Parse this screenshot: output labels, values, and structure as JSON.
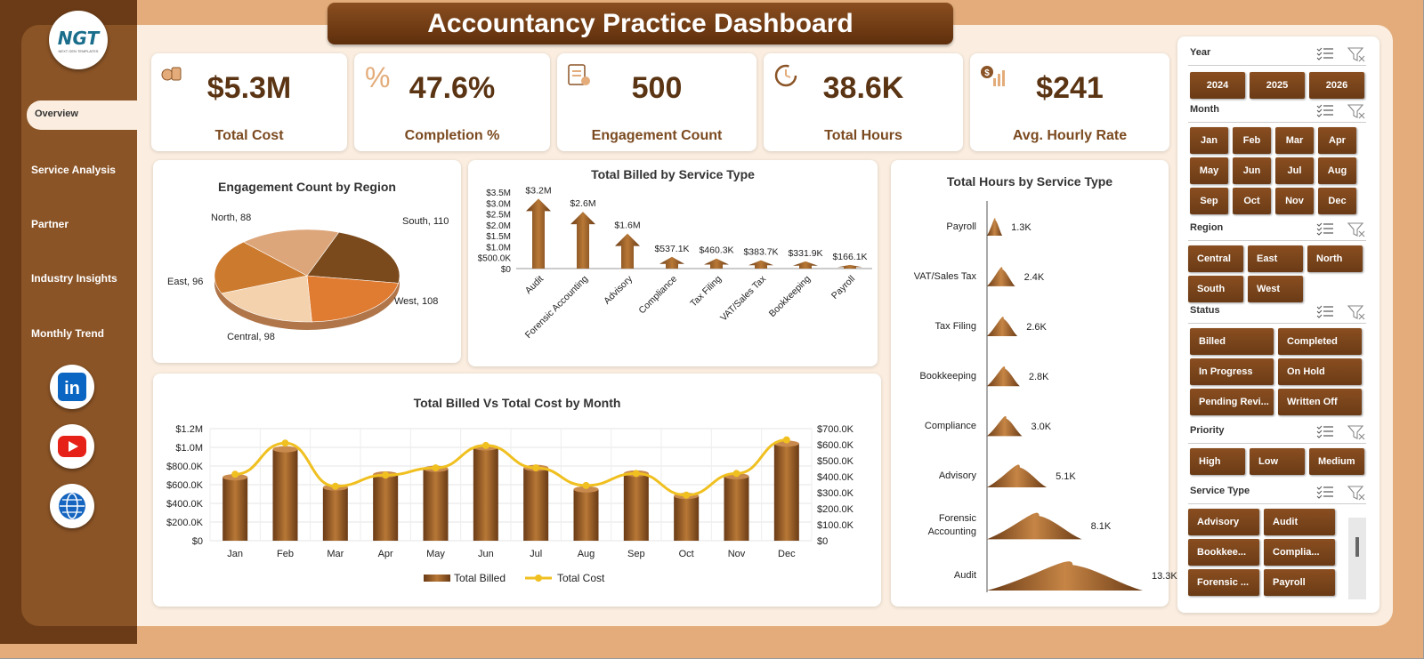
{
  "app_title": "Accountancy Practice Dashboard",
  "logo_text": "NGT",
  "logo_sub": "NEXT GEN TEMPLATES",
  "nav": [
    {
      "label": "Overview"
    },
    {
      "label": "Service Analysis"
    },
    {
      "label": "Partner"
    },
    {
      "label": "Industry Insights"
    },
    {
      "label": "Monthly Trend"
    }
  ],
  "social": [
    "linkedin-icon",
    "youtube-icon",
    "globe-icon"
  ],
  "kpis": [
    {
      "value": "$5.3M",
      "label": "Total Cost",
      "icon": "cost-icon"
    },
    {
      "value": "47.6%",
      "label": "Completion %",
      "icon": "percent-icon"
    },
    {
      "value": "500",
      "label": "Engagement Count",
      "icon": "clipboard-icon"
    },
    {
      "value": "38.6K",
      "label": "Total Hours",
      "icon": "clock-refresh-icon"
    },
    {
      "value": "$241",
      "label": "Avg. Hourly Rate",
      "icon": "money-chart-icon"
    }
  ],
  "colors": {
    "brand_dark": "#6a3b16",
    "brand": "#8b5426",
    "accent": "#f0c020",
    "bg": "#fbeee0"
  },
  "chart_data": [
    {
      "type": "pie",
      "title": "Engagement Count by Region",
      "categories": [
        "South",
        "West",
        "Central",
        "East",
        "North"
      ],
      "values": [
        110,
        108,
        98,
        96,
        88
      ],
      "labels": [
        "South, 110",
        "West, 108",
        "Central, 98",
        "East, 96",
        "North, 88"
      ]
    },
    {
      "type": "bar",
      "title": "Total Billed by Service Type",
      "categories": [
        "Audit",
        "Forensic Accounting",
        "Advisory",
        "Compliance",
        "Tax Filing",
        "VAT/Sales Tax",
        "Bookkeeping",
        "Payroll"
      ],
      "values": [
        3200000,
        2600000,
        1600000,
        537100,
        460300,
        383700,
        331900,
        166100
      ],
      "data_labels": [
        "$3.2M",
        "$2.6M",
        "$1.6M",
        "$537.1K",
        "$460.3K",
        "$383.7K",
        "$331.9K",
        "$166.1K"
      ],
      "yticks": [
        "$0",
        "$500.0K",
        "$1.0M",
        "$1.5M",
        "$2.0M",
        "$2.5M",
        "$3.0M",
        "$3.5M"
      ],
      "ylim": [
        0,
        3500000
      ]
    },
    {
      "type": "bar",
      "orientation": "horizontal",
      "title": "Total Hours by Service Type",
      "categories": [
        "Payroll",
        "VAT/Sales Tax",
        "Tax Filing",
        "Bookkeeping",
        "Compliance",
        "Advisory",
        "Forensic Accounting",
        "Audit"
      ],
      "values": [
        1300,
        2400,
        2600,
        2800,
        3000,
        5100,
        8100,
        13300
      ],
      "data_labels": [
        "1.3K",
        "2.4K",
        "2.6K",
        "2.8K",
        "3.0K",
        "5.1K",
        "8.1K",
        "13.3K"
      ]
    },
    {
      "type": "bar",
      "title": "Total Billed Vs Total Cost by Month",
      "categories": [
        "Jan",
        "Feb",
        "Mar",
        "Apr",
        "May",
        "Jun",
        "Jul",
        "Aug",
        "Sep",
        "Oct",
        "Nov",
        "Dec"
      ],
      "series": [
        {
          "name": "Total Billed",
          "type": "bar",
          "axis": "left",
          "values": [
            680000,
            980000,
            570000,
            710000,
            770000,
            1000000,
            780000,
            550000,
            720000,
            480000,
            690000,
            1040000
          ]
        },
        {
          "name": "Total Cost",
          "type": "line",
          "axis": "right",
          "values": [
            415000,
            610000,
            340000,
            410000,
            455000,
            595000,
            455000,
            345000,
            420000,
            285000,
            420000,
            630000
          ]
        }
      ],
      "yticks_left": [
        "$0",
        "$200.0K",
        "$400.0K",
        "$600.0K",
        "$800.0K",
        "$1.0M",
        "$1.2M"
      ],
      "yticks_right": [
        "$0",
        "$100.0K",
        "$200.0K",
        "$300.0K",
        "$400.0K",
        "$500.0K",
        "$600.0K",
        "$700.0K"
      ],
      "ylim_left": [
        0,
        1200000
      ],
      "ylim_right": [
        0,
        700000
      ],
      "legend": "bottom"
    }
  ],
  "slicers": {
    "year": {
      "label": "Year",
      "options": [
        "2024",
        "2025",
        "2026"
      ]
    },
    "month": {
      "label": "Month",
      "options": [
        "Jan",
        "Feb",
        "Mar",
        "Apr",
        "May",
        "Jun",
        "Jul",
        "Aug",
        "Sep",
        "Oct",
        "Nov",
        "Dec"
      ]
    },
    "region": {
      "label": "Region",
      "options": [
        "Central",
        "East",
        "North",
        "South",
        "West"
      ]
    },
    "status": {
      "label": "Status",
      "options": [
        "Billed",
        "Completed",
        "In Progress",
        "On Hold",
        "Pending Revi...",
        "Written Off"
      ]
    },
    "priority": {
      "label": "Priority",
      "options": [
        "High",
        "Low",
        "Medium"
      ]
    },
    "service": {
      "label": "Service Type",
      "options": [
        "Advisory",
        "Audit",
        "Bookkee...",
        "Complia...",
        "Forensic ...",
        "Payroll"
      ]
    }
  }
}
